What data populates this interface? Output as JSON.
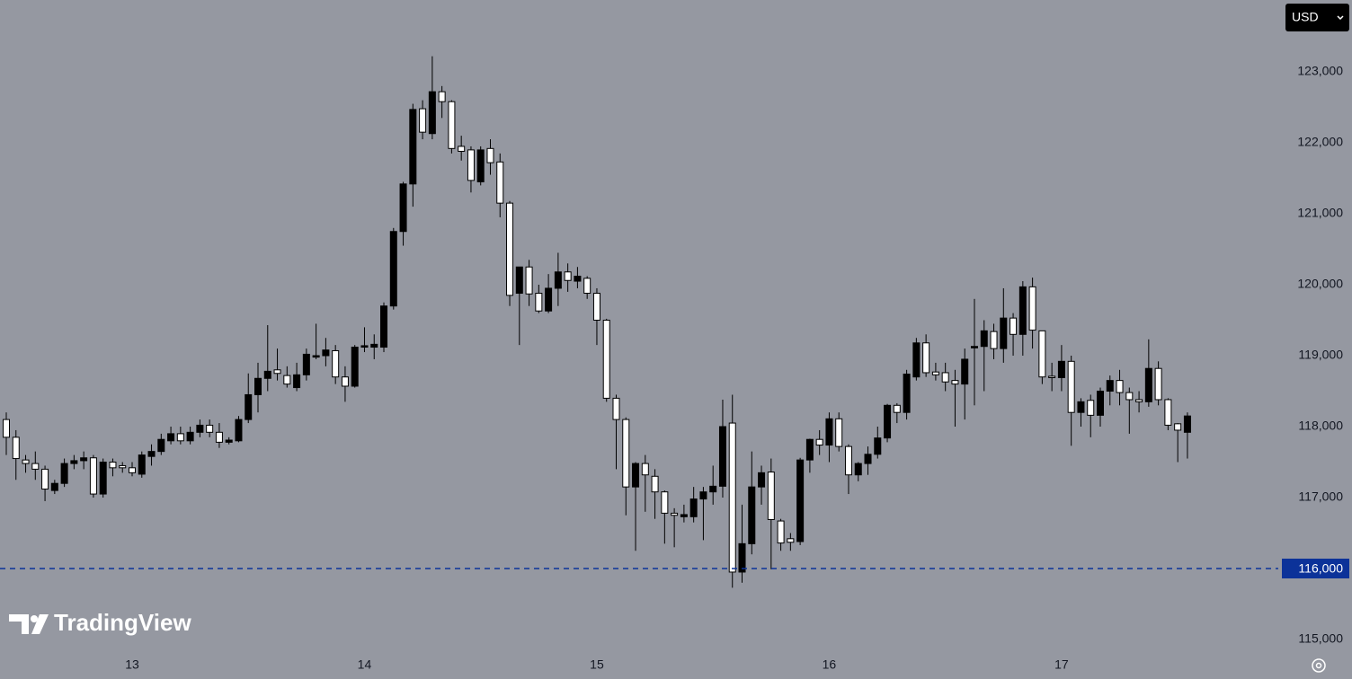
{
  "chart_data": {
    "type": "candlestick",
    "currency": "USD",
    "watermark": "TradingView",
    "up_color": "#000000",
    "down_color": "#ffffff",
    "background": "#9598a1",
    "categories": [
      null,
      null,
      null,
      null,
      null,
      null,
      null,
      null,
      null,
      null,
      null,
      null,
      null,
      "13",
      null,
      null,
      null,
      null,
      null,
      null,
      null,
      null,
      null,
      null,
      null,
      null,
      null,
      null,
      null,
      null,
      null,
      null,
      null,
      null,
      null,
      null,
      null,
      "14",
      null,
      null,
      null,
      null,
      null,
      null,
      null,
      null,
      null,
      null,
      null,
      null,
      null,
      null,
      null,
      null,
      null,
      null,
      null,
      null,
      null,
      null,
      null,
      "15",
      null,
      null,
      null,
      null,
      null,
      null,
      null,
      null,
      null,
      null,
      null,
      null,
      null,
      null,
      null,
      null,
      null,
      null,
      null,
      null,
      null,
      null,
      null,
      "16",
      null,
      null,
      null,
      null,
      null,
      null,
      null,
      null,
      null,
      null,
      null,
      null,
      null,
      null,
      null,
      null,
      null,
      null,
      null,
      null,
      null,
      null,
      null,
      "17",
      null,
      null,
      null,
      null,
      null,
      null,
      null,
      null,
      null,
      null,
      null,
      null,
      null
    ],
    "open": [
      118100,
      117850,
      117530,
      117480,
      117400,
      117100,
      117200,
      117480,
      117520,
      117560,
      117050,
      117500,
      117450,
      117420,
      117330,
      117580,
      117650,
      117800,
      117900,
      117800,
      117920,
      118020,
      117920,
      117780,
      117800,
      118100,
      118450,
      118680,
      118800,
      118720,
      118550,
      118730,
      118980,
      119000,
      119070,
      118700,
      118570,
      119120,
      119120,
      119120,
      119700,
      120750,
      121420,
      122480,
      122130,
      122720,
      122580,
      121950,
      121900,
      121450,
      121920,
      121730,
      121150,
      119880,
      120250,
      119880,
      119630,
      119950,
      120180,
      120050,
      120090,
      119880,
      119500,
      118400,
      118100,
      117150,
      117480,
      117300,
      117080,
      116780,
      116730,
      116730,
      116980,
      117080,
      117160,
      118050,
      115950,
      116350,
      117150,
      117360,
      116670,
      116420,
      116380,
      117530,
      117820,
      117740,
      118110,
      117720,
      117320,
      117480,
      117610,
      117840,
      118300,
      118200,
      118700,
      119180,
      118770,
      118760,
      118650,
      118600,
      119110,
      119130,
      119340,
      119100,
      119530,
      119300,
      119970,
      119350,
      118710,
      118690,
      118920,
      118200,
      118370,
      118160,
      118500,
      118650,
      118480,
      118380,
      118350,
      118820,
      118380,
      118040,
      117920
    ],
    "high": [
      118200,
      117950,
      117600,
      117650,
      117450,
      117250,
      117550,
      117600,
      117650,
      117600,
      117550,
      117550,
      117500,
      117500,
      117650,
      117750,
      117900,
      118000,
      118000,
      118000,
      118100,
      118100,
      118050,
      117850,
      118150,
      118750,
      118900,
      119430,
      119100,
      118850,
      118900,
      119100,
      119450,
      119250,
      119150,
      118850,
      119150,
      119400,
      119300,
      119750,
      120800,
      121450,
      122550,
      122600,
      123220,
      122800,
      122600,
      122100,
      121950,
      121950,
      122050,
      121850,
      121180,
      120250,
      120350,
      120000,
      120150,
      120450,
      120300,
      120250,
      120120,
      119950,
      119520,
      118450,
      118130,
      117500,
      117600,
      117400,
      117100,
      116850,
      116900,
      117150,
      117150,
      117450,
      118380,
      118450,
      116900,
      117650,
      117450,
      117550,
      116700,
      116500,
      117560,
      117830,
      117950,
      118200,
      118200,
      117750,
      117500,
      117720,
      118000,
      118320,
      118330,
      118800,
      119250,
      119300,
      118900,
      118900,
      118800,
      119100,
      119800,
      119500,
      119450,
      119950,
      119600,
      120050,
      120100,
      119350,
      118900,
      119150,
      119000,
      118400,
      118450,
      118550,
      118720,
      118800,
      118550,
      118500,
      119230,
      118920,
      118400,
      118050,
      118200
    ],
    "low": [
      117600,
      117250,
      117350,
      117250,
      116950,
      117050,
      117150,
      117400,
      117400,
      117000,
      117000,
      117300,
      117350,
      117300,
      117280,
      117450,
      117600,
      117750,
      117750,
      117750,
      117850,
      117850,
      117700,
      117750,
      117780,
      118050,
      118200,
      118500,
      118650,
      118550,
      118500,
      118650,
      118950,
      118850,
      118600,
      118350,
      118550,
      119050,
      118950,
      119050,
      119650,
      120550,
      121100,
      122050,
      122050,
      122350,
      121850,
      121750,
      121300,
      121400,
      121550,
      120950,
      119700,
      119150,
      119700,
      119600,
      119600,
      119700,
      119900,
      119950,
      119800,
      119150,
      118350,
      117400,
      116750,
      116250,
      116800,
      116700,
      116350,
      116300,
      116650,
      116650,
      116400,
      116900,
      117000,
      115730,
      115800,
      116200,
      116900,
      115990,
      116250,
      116250,
      116330,
      117350,
      117600,
      117500,
      117650,
      117050,
      117230,
      117320,
      117550,
      117780,
      118050,
      118100,
      118650,
      118700,
      118650,
      118500,
      118000,
      118100,
      118300,
      118500,
      118950,
      118900,
      119000,
      119000,
      119100,
      118600,
      118500,
      118500,
      117730,
      118000,
      117850,
      118000,
      118300,
      118300,
      117900,
      118200,
      118280,
      118300,
      117950,
      117500,
      117550
    ],
    "close": [
      117850,
      117550,
      117480,
      117400,
      117120,
      117200,
      117480,
      117520,
      117560,
      117050,
      117500,
      117420,
      117420,
      117350,
      117600,
      117650,
      117820,
      117900,
      117800,
      117920,
      118020,
      117920,
      117780,
      117810,
      118100,
      118450,
      118680,
      118780,
      118750,
      118600,
      118730,
      119020,
      119000,
      119080,
      118700,
      118570,
      119120,
      119140,
      119160,
      119700,
      120750,
      121420,
      122470,
      122150,
      122720,
      122580,
      121920,
      121880,
      121470,
      121900,
      121720,
      121150,
      119850,
      120250,
      119870,
      119630,
      119950,
      120180,
      120060,
      120120,
      119880,
      119500,
      118400,
      118100,
      117150,
      117480,
      117320,
      117080,
      116780,
      116750,
      116760,
      116980,
      117080,
      117160,
      118000,
      115950,
      116350,
      117150,
      117350,
      116690,
      116360,
      116370,
      117530,
      117820,
      117740,
      118110,
      117720,
      117320,
      117480,
      117610,
      117840,
      118300,
      118200,
      118740,
      119180,
      118760,
      118730,
      118630,
      118600,
      118950,
      119130,
      119350,
      119100,
      119530,
      119300,
      119970,
      119360,
      118700,
      118690,
      118920,
      118200,
      118350,
      118160,
      118500,
      118650,
      118480,
      118380,
      118350,
      118820,
      118380,
      118020,
      117950,
      118150
    ],
    "ylim": [
      114800,
      124000
    ],
    "yticks": [
      {
        "value": 115000,
        "label": "115,000"
      },
      {
        "value": 116000,
        "label": "116,000"
      },
      {
        "value": 117000,
        "label": "117,000"
      },
      {
        "value": 118000,
        "label": "118,000"
      },
      {
        "value": 119000,
        "label": "119,000"
      },
      {
        "value": 120000,
        "label": "120,000"
      },
      {
        "value": 121000,
        "label": "121,000"
      },
      {
        "value": 122000,
        "label": "122,000"
      },
      {
        "value": 123000,
        "label": "123,000"
      }
    ],
    "price_line": {
      "value": 116000,
      "label": "116,000",
      "color": "#0c3299"
    }
  }
}
